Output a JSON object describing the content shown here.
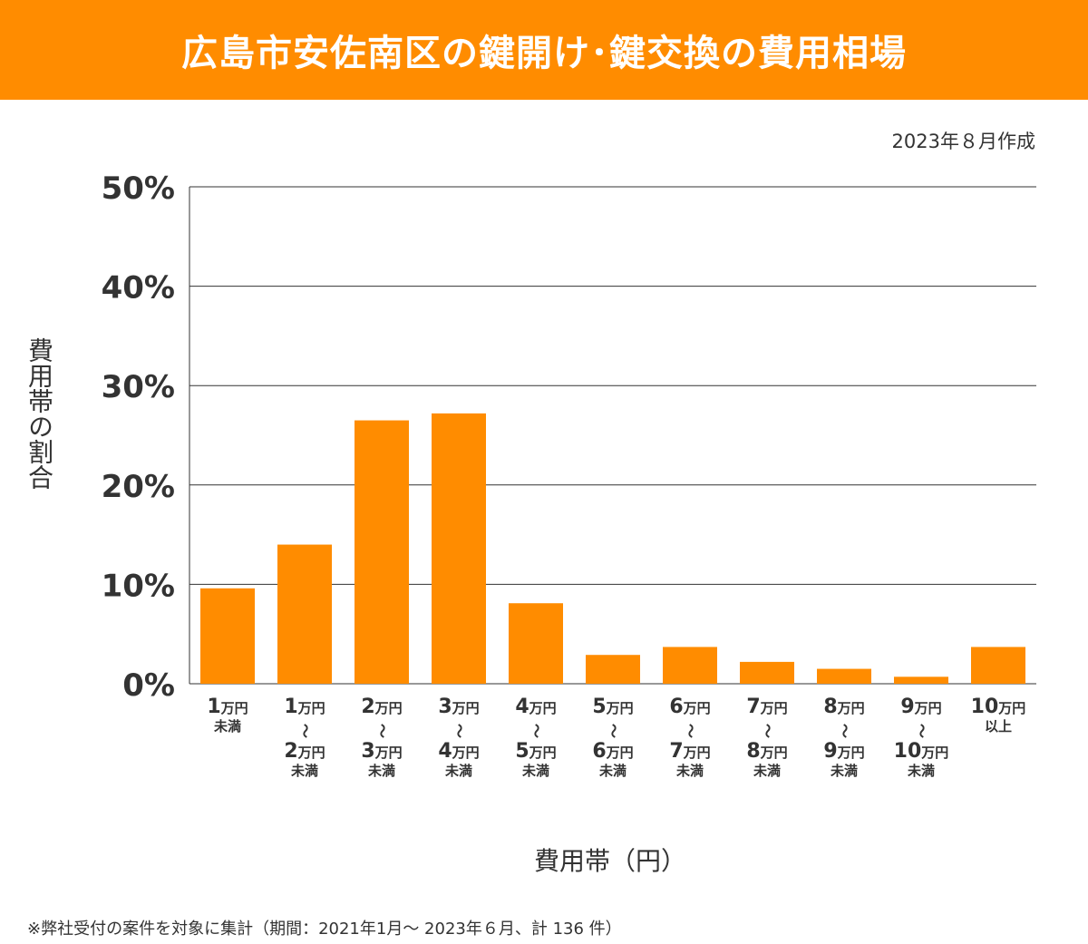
{
  "header": {
    "title": "広島市安佐南区の鍵開け･鍵交換の費用相場"
  },
  "date_text": "2023年８月作成",
  "footnote": "※弊社受付の案件を対象に集計（期間：2021年1月～ 2023年６月、計 136 件）",
  "colors": {
    "bar": "#FF8C00",
    "header": "#FF8C00",
    "grid": "#333333"
  },
  "chart_data": {
    "type": "bar",
    "xlabel": "費用帯（円）",
    "ylabel": "費用帯の割合",
    "ylim": [
      0,
      50
    ],
    "yticks": [
      "0%",
      "10%",
      "20%",
      "30%",
      "40%",
      "50%"
    ],
    "grid": true,
    "categories": [
      [
        "1万円",
        "未満"
      ],
      [
        "1万円",
        "〜",
        "2万円",
        "未満"
      ],
      [
        "2万円",
        "〜",
        "3万円",
        "未満"
      ],
      [
        "3万円",
        "〜",
        "4万円",
        "未満"
      ],
      [
        "4万円",
        "〜",
        "5万円",
        "未満"
      ],
      [
        "5万円",
        "〜",
        "6万円",
        "未満"
      ],
      [
        "6万円",
        "〜",
        "7万円",
        "未満"
      ],
      [
        "7万円",
        "〜",
        "8万円",
        "未満"
      ],
      [
        "8万円",
        "〜",
        "9万円",
        "未満"
      ],
      [
        "9万円",
        "〜",
        "10万円",
        "未満"
      ],
      [
        "10万円",
        "以上"
      ]
    ],
    "values": [
      9.6,
      14.0,
      26.5,
      27.2,
      8.1,
      2.9,
      3.7,
      2.2,
      1.5,
      0.7,
      3.7
    ]
  }
}
